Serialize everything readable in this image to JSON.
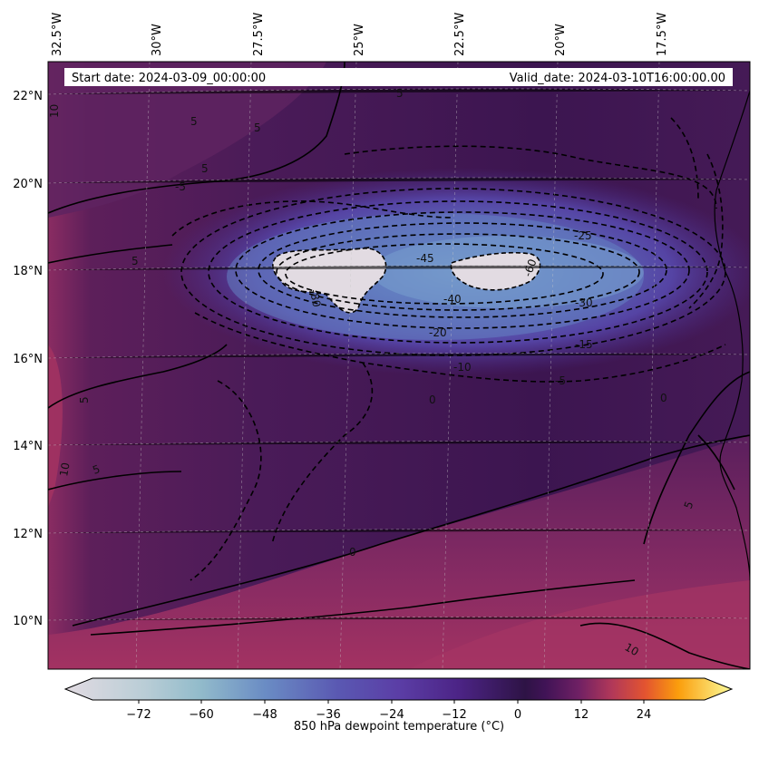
{
  "header": {
    "start_date": "Start date: 2024-03-09_00:00:00",
    "valid_date": "Valid_date: 2024-03-10T16:00:00.00"
  },
  "map": {
    "lon_ticks": [
      "32.5°W",
      "30°W",
      "27.5°W",
      "25°W",
      "22.5°W",
      "20°W",
      "17.5°W"
    ],
    "lat_ticks": [
      "22°N",
      "20°N",
      "18°N",
      "16°N",
      "14°N",
      "12°N",
      "10°N"
    ],
    "contour_labels": [
      {
        "id": "c-neg25",
        "text": "-25"
      },
      {
        "id": "c-neg30",
        "text": "-30"
      },
      {
        "id": "c-neg15",
        "text": "-15"
      },
      {
        "id": "c-neg40",
        "text": "-40"
      },
      {
        "id": "c-neg45",
        "text": "-45"
      },
      {
        "id": "c-neg20",
        "text": "-20"
      },
      {
        "id": "c-neg10",
        "text": "-10"
      },
      {
        "id": "c-neg5a",
        "text": "-5"
      },
      {
        "id": "c-neg5b",
        "text": "-5"
      },
      {
        "id": "c-neg5c",
        "text": "-5"
      },
      {
        "id": "c-neg80",
        "text": "-80"
      },
      {
        "id": "c-neg60",
        "text": "-60"
      },
      {
        "id": "c-5a",
        "text": "5"
      },
      {
        "id": "c-5b",
        "text": "5"
      },
      {
        "id": "c-5c",
        "text": "5"
      },
      {
        "id": "c-5d",
        "text": "5"
      },
      {
        "id": "c-5e",
        "text": "5"
      },
      {
        "id": "c-5f",
        "text": "5"
      },
      {
        "id": "c-5g",
        "text": "5"
      },
      {
        "id": "c-5h",
        "text": "5"
      },
      {
        "id": "c-10a",
        "text": "10"
      },
      {
        "id": "c-10b",
        "text": "10"
      },
      {
        "id": "c-10c",
        "text": "10"
      },
      {
        "id": "c-0a",
        "text": "0"
      },
      {
        "id": "c-0b",
        "text": "0"
      },
      {
        "id": "c-0c",
        "text": "0"
      }
    ]
  },
  "colorbar": {
    "ticks": [
      "−72",
      "−60",
      "−48",
      "−36",
      "−24",
      "−12",
      "0",
      "12",
      "24"
    ],
    "label": "850 hPa dewpoint temperature (°C)",
    "colors": {
      "min": "#e2dbe2",
      "c60": "#93bccb",
      "c48": "#6a8cc4",
      "c36": "#5a58b2",
      "c24": "#5b3ea6",
      "c12": "#4c2486",
      "zero": "#2e1345",
      "p6": "#5b2062",
      "p12": "#a0305f",
      "p18": "#e35430",
      "p24": "#fb9e0c",
      "max": "#fbfb9a"
    }
  }
}
